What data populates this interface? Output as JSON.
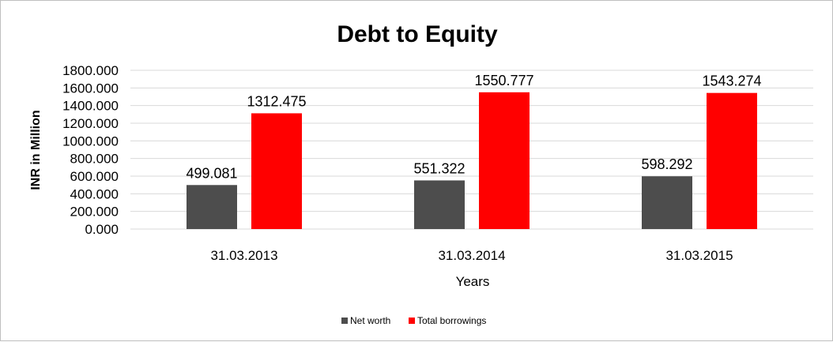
{
  "chart_data": {
    "type": "bar",
    "title": "Debt to Equity",
    "xlabel": "Years",
    "ylabel": "INR in Million",
    "categories": [
      "31.03.2013",
      "31.03.2014",
      "31.03.2015"
    ],
    "series": [
      {
        "name": "Net worth",
        "color": "#4d4d4d",
        "values": [
          499.081,
          551.322,
          598.292
        ],
        "labels": [
          "499.081",
          "551.322",
          "598.292"
        ]
      },
      {
        "name": "Total borrowings",
        "color": "#ff0000",
        "values": [
          1312.475,
          1550.777,
          1543.274
        ],
        "labels": [
          "1312.475",
          "1550.777",
          "1543.274"
        ]
      }
    ],
    "ylim": [
      0,
      1800
    ],
    "yticks": [
      "0.000",
      "200.000",
      "400.000",
      "600.000",
      "800.000",
      "1000.000",
      "1200.000",
      "1400.000",
      "1600.000",
      "1800.000"
    ],
    "grid": true,
    "legend_position": "bottom"
  }
}
